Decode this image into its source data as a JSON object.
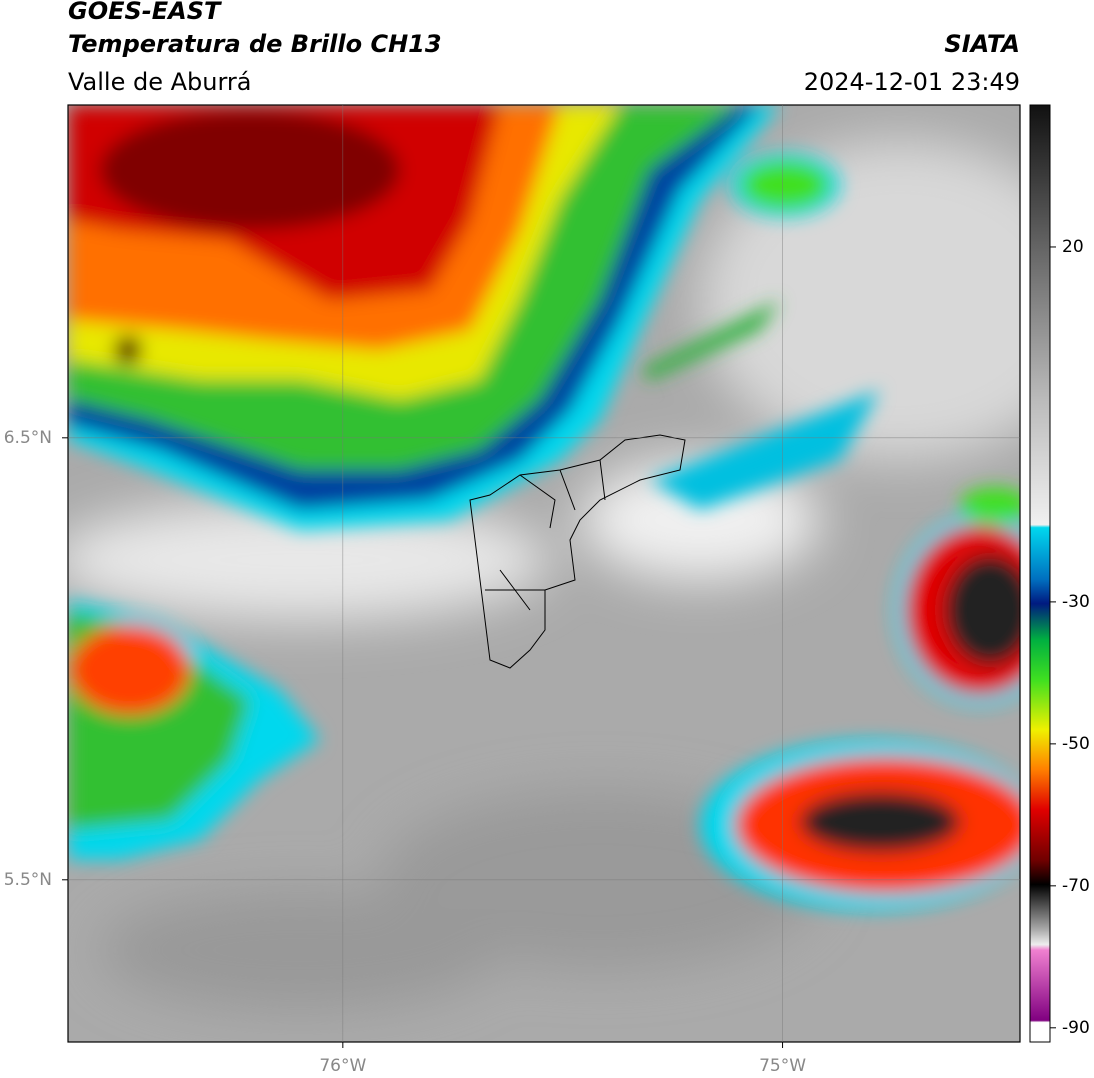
{
  "header": {
    "title": "GOES-EAST",
    "subtitle": "Temperatura de Brillo CH13",
    "region": "Valle de Aburrá",
    "source": "SIATA",
    "timestamp": "2024-12-01 23:49"
  },
  "map": {
    "xlim": [
      -76.625,
      -74.46
    ],
    "ylim": [
      5.133,
      7.253
    ],
    "xticks": [
      {
        "value": -76,
        "label": "76°W"
      },
      {
        "value": -75,
        "label": "75°W"
      }
    ],
    "yticks": [
      {
        "value": 6.5,
        "label": "6.5°N"
      },
      {
        "value": 5.5,
        "label": "5.5°N"
      }
    ]
  },
  "colorbar": {
    "lim": [
      -92,
      40
    ],
    "ticks": [
      20,
      -30,
      -50,
      -70,
      -90
    ]
  }
}
